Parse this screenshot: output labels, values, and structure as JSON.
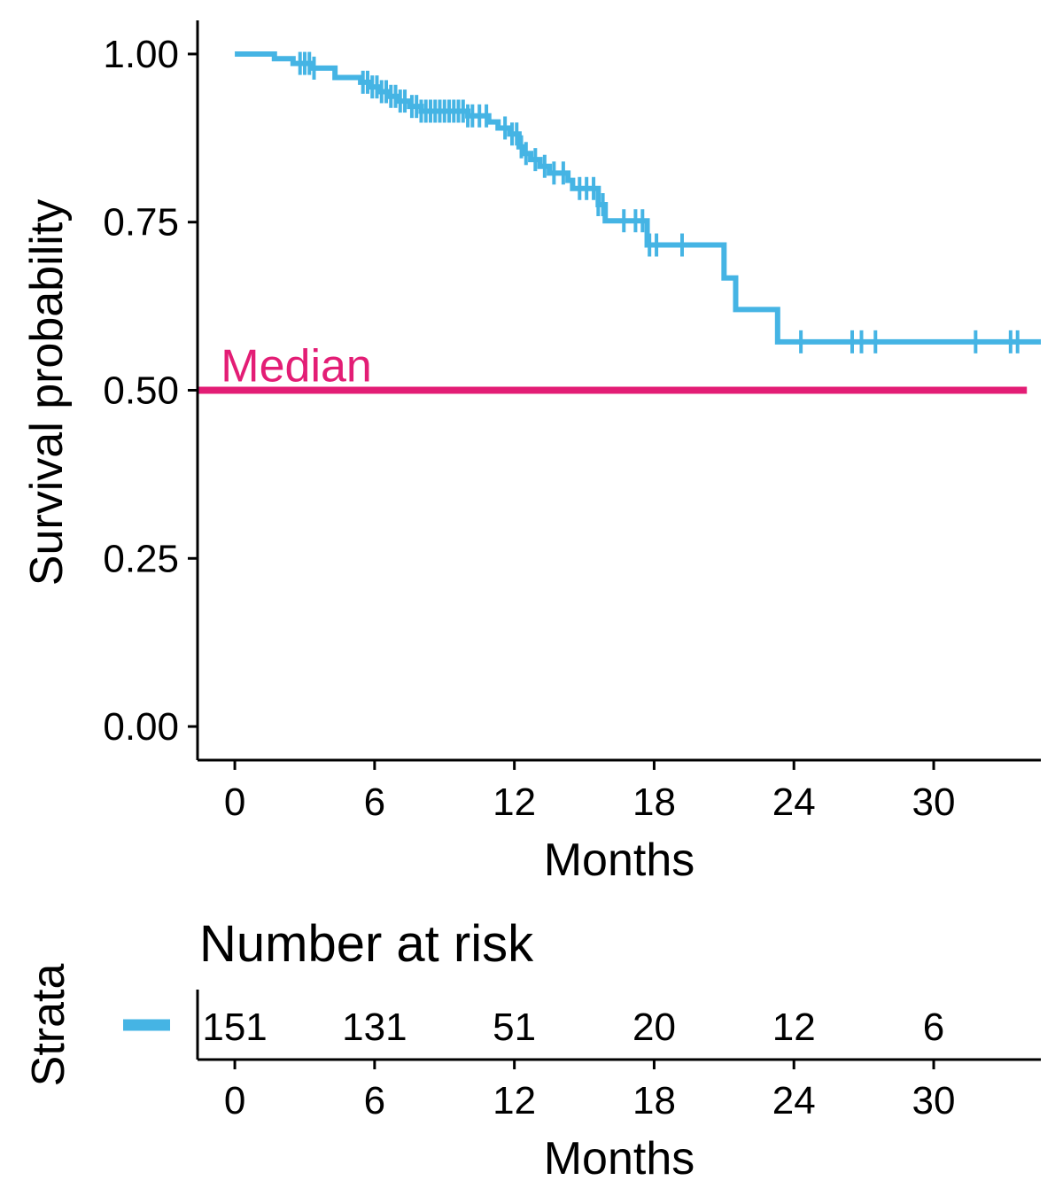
{
  "chart_data": [
    {
      "type": "line",
      "subtype": "kaplan-meier-step",
      "xlabel": "Months",
      "ylabel": "Survival probability",
      "xlim": [
        -1.6,
        34.6
      ],
      "ylim": [
        -0.05,
        1.05
      ],
      "xticks": [
        0,
        6,
        12,
        18,
        24,
        30
      ],
      "yticks": [
        0.0,
        0.25,
        0.5,
        0.75,
        1.0
      ],
      "ytick_labels": [
        "0.00",
        "0.25",
        "0.50",
        "0.75",
        "1.00"
      ],
      "grid": false,
      "series": [
        {
          "color": "#45B4E4",
          "steps": [
            {
              "x": 0.0,
              "y": 1.0
            },
            {
              "x": 1.7,
              "y": 0.993
            },
            {
              "x": 2.5,
              "y": 0.986
            },
            {
              "x": 3.3,
              "y": 0.979
            },
            {
              "x": 4.3,
              "y": 0.965
            },
            {
              "x": 5.4,
              "y": 0.958
            },
            {
              "x": 5.8,
              "y": 0.951
            },
            {
              "x": 6.2,
              "y": 0.944
            },
            {
              "x": 6.6,
              "y": 0.937
            },
            {
              "x": 7.0,
              "y": 0.93
            },
            {
              "x": 7.5,
              "y": 0.922
            },
            {
              "x": 8.0,
              "y": 0.915
            },
            {
              "x": 10.0,
              "y": 0.908
            },
            {
              "x": 10.9,
              "y": 0.899
            },
            {
              "x": 11.3,
              "y": 0.89
            },
            {
              "x": 11.8,
              "y": 0.881
            },
            {
              "x": 12.2,
              "y": 0.862
            },
            {
              "x": 12.4,
              "y": 0.852
            },
            {
              "x": 12.7,
              "y": 0.843
            },
            {
              "x": 13.1,
              "y": 0.833
            },
            {
              "x": 13.5,
              "y": 0.823
            },
            {
              "x": 14.3,
              "y": 0.812
            },
            {
              "x": 14.5,
              "y": 0.8
            },
            {
              "x": 15.6,
              "y": 0.776
            },
            {
              "x": 15.9,
              "y": 0.752
            },
            {
              "x": 17.7,
              "y": 0.716
            },
            {
              "x": 21.0,
              "y": 0.667
            },
            {
              "x": 21.5,
              "y": 0.62
            },
            {
              "x": 23.3,
              "y": 0.572
            }
          ],
          "end_x": 34.6,
          "censor_times": [
            2.8,
            3.0,
            3.2,
            3.4,
            5.5,
            5.7,
            5.9,
            6.1,
            6.3,
            6.5,
            6.7,
            6.9,
            7.1,
            7.3,
            7.6,
            7.8,
            8.0,
            8.2,
            8.4,
            8.6,
            8.8,
            9.0,
            9.2,
            9.4,
            9.6,
            9.8,
            10.0,
            10.2,
            10.5,
            10.8,
            11.6,
            11.9,
            12.1,
            12.3,
            12.5,
            12.9,
            13.3,
            13.7,
            14.1,
            14.8,
            15.1,
            15.4,
            15.6,
            15.8,
            16.7,
            17.2,
            17.5,
            17.8,
            18.1,
            19.2,
            24.3,
            26.5,
            26.9,
            27.5,
            31.8,
            33.3,
            33.6
          ]
        }
      ],
      "annotations": [
        {
          "text": "Median",
          "x": -0.6,
          "y": 0.505,
          "color": "#E31D75"
        }
      ],
      "reference_lines": [
        {
          "y": 0.5,
          "x_from": -1.6,
          "x_to": 34.0,
          "color": "#E31D75"
        }
      ]
    },
    {
      "type": "table",
      "title": "Number at risk",
      "ylabel": "Strata",
      "xlabel": "Months",
      "xticks": [
        0,
        6,
        12,
        18,
        24,
        30
      ],
      "legend_color": "#45B4E4",
      "at_risk": [
        {
          "x": 0,
          "value": "151"
        },
        {
          "x": 6,
          "value": "131"
        },
        {
          "x": 12,
          "value": "51"
        },
        {
          "x": 18,
          "value": "20"
        },
        {
          "x": 24,
          "value": "12"
        },
        {
          "x": 30,
          "value": "6"
        }
      ]
    }
  ]
}
